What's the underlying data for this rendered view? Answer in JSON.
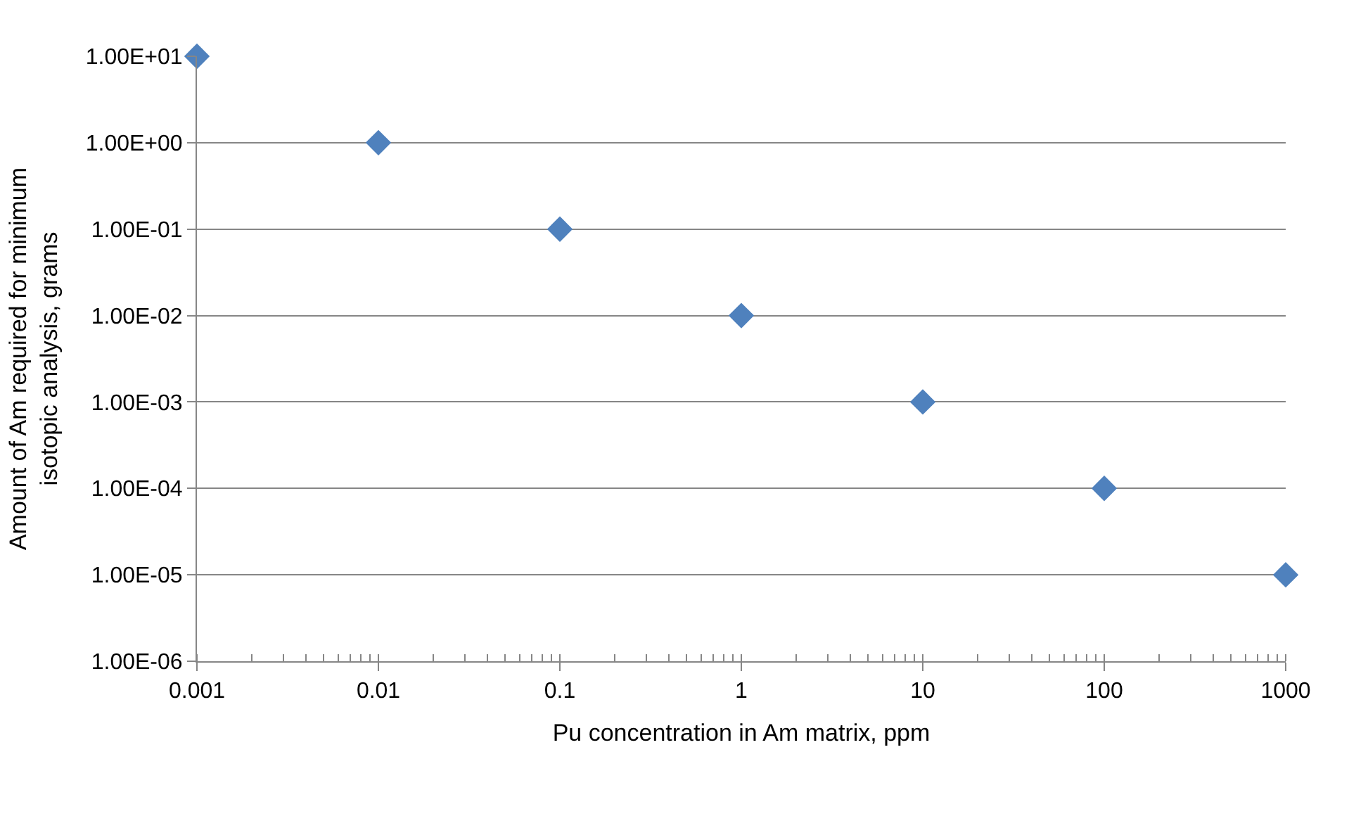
{
  "chart_data": {
    "type": "scatter",
    "xlabel": "Pu concentration in Am matrix, ppm",
    "ylabel": "Amount of Am required for minimum\nisotopic analysis, grams",
    "x": [
      0.001,
      0.01,
      0.1,
      1,
      10,
      100,
      1000
    ],
    "series": [
      {
        "color": "#4f81bd",
        "values": [
          10,
          1,
          0.1,
          0.01,
          0.001,
          0.0001,
          1e-05
        ]
      }
    ],
    "marker": "diamond",
    "log": "xy",
    "grid": "y",
    "xlim": [
      0.001,
      1000
    ],
    "ylim": [
      1e-06,
      10
    ],
    "xticks": [
      0.001,
      0.01,
      0.1,
      1,
      10,
      100,
      1000
    ],
    "yticks": [
      {
        "value": 1e-06,
        "label": "1.00E-06"
      },
      {
        "value": 1e-05,
        "label": "1.00E-05"
      },
      {
        "value": 0.0001,
        "label": "1.00E-04"
      },
      {
        "value": 0.001,
        "label": "1.00E-03"
      },
      {
        "value": 0.01,
        "label": "1.00E-02"
      },
      {
        "value": 0.1,
        "label": "1.00E-01"
      },
      {
        "value": 1,
        "label": "1.00E+00"
      },
      {
        "value": 10,
        "label": "1.00E+01"
      }
    ]
  }
}
